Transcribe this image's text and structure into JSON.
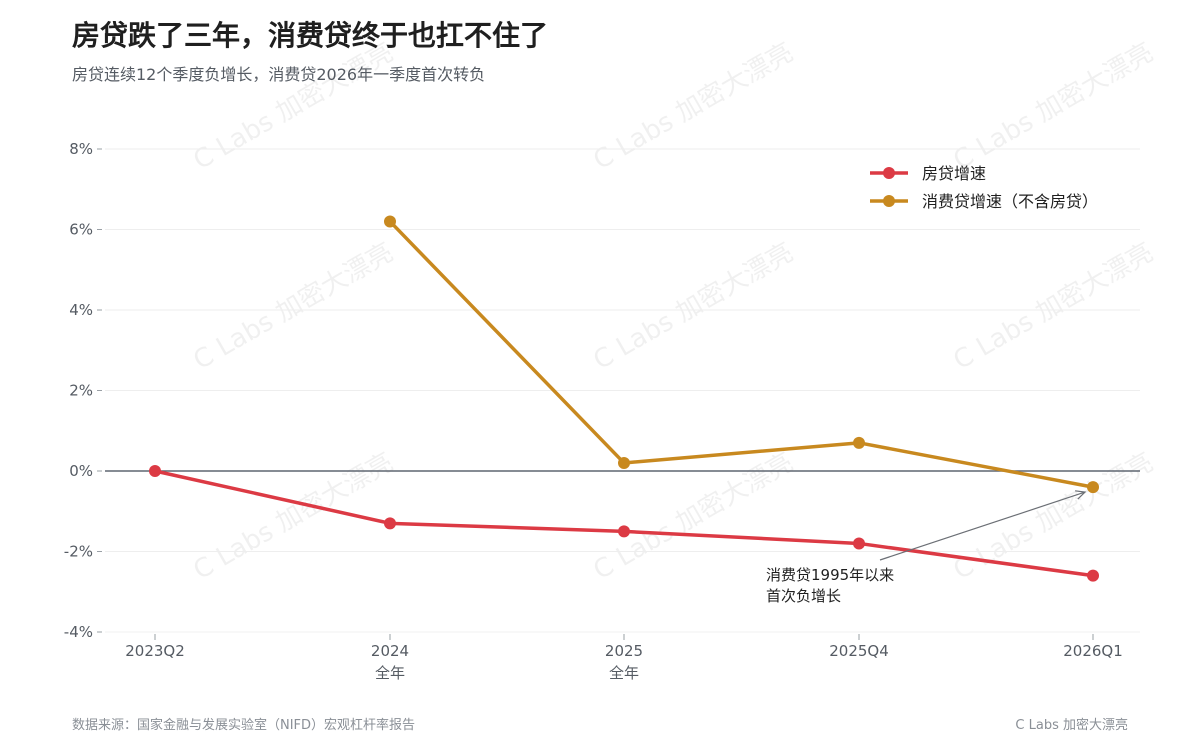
{
  "header": {
    "title": "房贷跌了三年，消费贷终于也扛不住了",
    "subtitle": "房贷连续12个季度负增长，消费贷2026年一季度首次转负"
  },
  "footer": {
    "source": "数据来源：国家金融与发展实验室（NIFD）宏观杠杆率报告",
    "brand": "C Labs 加密大漂亮"
  },
  "watermark": "C Labs 加密大漂亮",
  "colors": {
    "mortgage": "#dc3a44",
    "consumer": "#c8891f",
    "zero_line": "#5f6670",
    "grid": "#eeeeee",
    "arrow": "#6b6f75"
  },
  "chart_data": {
    "type": "line",
    "categories": [
      {
        "label": "2023Q2",
        "sub": ""
      },
      {
        "label": "2024",
        "sub": "全年"
      },
      {
        "label": "2025",
        "sub": "全年"
      },
      {
        "label": "2025Q4",
        "sub": ""
      },
      {
        "label": "2026Q1",
        "sub": ""
      }
    ],
    "series": [
      {
        "name": "房贷增速",
        "color": "#dc3a44",
        "values": [
          0.0,
          -1.3,
          -1.5,
          -1.8,
          -2.6
        ]
      },
      {
        "name": "消费贷增速（不含房贷）",
        "color": "#c8891f",
        "values": [
          null,
          6.2,
          0.2,
          0.7,
          -0.4
        ]
      }
    ],
    "ylim": [
      -4,
      8
    ],
    "yticks": [
      -4,
      -2,
      0,
      2,
      4,
      6,
      8
    ],
    "ytick_labels": [
      "-4%",
      "-2%",
      "0%",
      "2%",
      "4%",
      "6%",
      "8%"
    ],
    "grid": true,
    "legend_position": "top-right",
    "annotation": {
      "lines": [
        "消费贷1995年以来",
        "首次负增长"
      ],
      "target_series": 1,
      "target_index": 4
    }
  }
}
